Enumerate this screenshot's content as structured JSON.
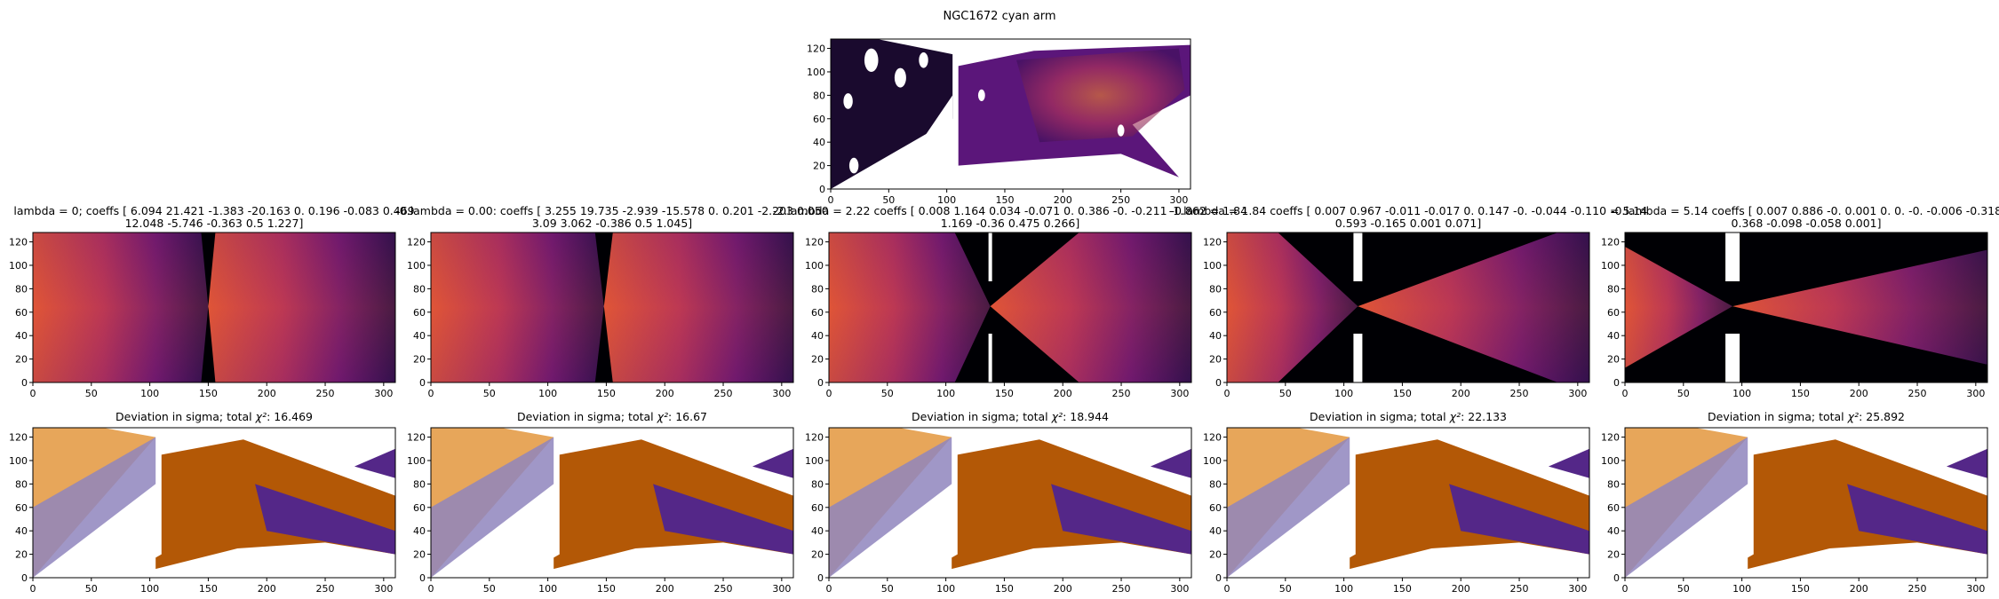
{
  "figure": {
    "suptitle": "NGC1672 cyan arm"
  },
  "chart_data": [
    {
      "id": "observed",
      "type": "heatmap",
      "title": "",
      "xlabel": "",
      "ylabel": "",
      "xlim": [
        0,
        310
      ],
      "ylim": [
        0,
        128
      ],
      "xticks": [
        0,
        50,
        100,
        150,
        200,
        250,
        300
      ],
      "yticks": [
        0,
        20,
        40,
        60,
        80,
        100,
        120
      ],
      "colormap": "inferno",
      "content": "observed intensity map with masked regions"
    },
    {
      "id": "model-0",
      "type": "heatmap",
      "title": "lambda = 0; coeffs [  6.094  21.421  -1.383 -20.163   0.      0.196  -0.083   0.469",
      "title_line2": "12.048  -5.746  -0.363   0.5     1.227]",
      "xlim": [
        0,
        310
      ],
      "ylim": [
        0,
        128
      ],
      "xticks": [
        0,
        50,
        100,
        150,
        200,
        250,
        300
      ],
      "yticks": [
        0,
        20,
        40,
        60,
        80,
        100,
        120
      ],
      "colormap": "inferno",
      "center_x": 150,
      "center_y": 65
    },
    {
      "id": "model-1",
      "type": "heatmap",
      "title": "-0.lambda = 0.00: coeffs [  3.255  19.735  -2.939 -15.578   0.      0.201  -2.203   0.050",
      "title_line2": "3.09    3.062  -0.386   0.5     1.045]",
      "xlim": [
        0,
        310
      ],
      "ylim": [
        0,
        128
      ],
      "xticks": [
        0,
        50,
        100,
        150,
        200,
        250,
        300
      ],
      "yticks": [
        0,
        20,
        40,
        60,
        80,
        100,
        120
      ],
      "colormap": "inferno",
      "center_x": 148,
      "center_y": 65
    },
    {
      "id": "model-2",
      "type": "heatmap",
      "title": "-2.lambda = 2.22 coeffs [ 0.008  1.164  0.034 -0.071  0.     0.386 -0.     -0.211 -0.862 = 1.84",
      "title_line2": "1.169 -0.36   0.475  0.266]",
      "xlim": [
        0,
        310
      ],
      "ylim": [
        0,
        128
      ],
      "xticks": [
        0,
        50,
        100,
        150,
        200,
        250,
        300
      ],
      "yticks": [
        0,
        20,
        40,
        60,
        80,
        100,
        120
      ],
      "colormap": "inferno",
      "center_x": 138,
      "center_y": 65
    },
    {
      "id": "model-3",
      "type": "heatmap",
      "title": "-1.lambda = 1.84 coeffs [ 0.007  0.967 -0.011 -0.017  0.     0.147 -0.     -0.044 -0.110 = 5.14",
      "title_line2": "0.593 -0.165  0.001  0.071]",
      "xlim": [
        0,
        310
      ],
      "ylim": [
        0,
        128
      ],
      "xticks": [
        0,
        50,
        100,
        150,
        200,
        250,
        300
      ],
      "yticks": [
        0,
        20,
        40,
        60,
        80,
        100,
        120
      ],
      "colormap": "inferno",
      "center_x": 112,
      "center_y": 65
    },
    {
      "id": "model-4",
      "type": "heatmap",
      "title": "-0.lambda = 5.14 coeffs [ 0.007  0.886 -0.     0.001  0.     0.    -0.     -0.006 -0.318",
      "title_line2": "0.368 -0.098 -0.058  0.001]",
      "xlim": [
        0,
        310
      ],
      "ylim": [
        0,
        128
      ],
      "xticks": [
        0,
        50,
        100,
        150,
        200,
        250,
        300
      ],
      "yticks": [
        0,
        20,
        40,
        60,
        80,
        100,
        120
      ],
      "colormap": "inferno",
      "center_x": 92,
      "center_y": 65
    },
    {
      "id": "dev-0",
      "type": "heatmap",
      "title_prefix": "Deviation in sigma; total ",
      "chi_label": "χ²",
      "title_suffix": ": 16.469",
      "total_chi2": 16.469,
      "xlim": [
        0,
        310
      ],
      "ylim": [
        0,
        128
      ],
      "xticks": [
        0,
        50,
        100,
        150,
        200,
        250,
        300
      ],
      "yticks": [
        0,
        20,
        40,
        60,
        80,
        100,
        120
      ],
      "colormap": "PuOr"
    },
    {
      "id": "dev-1",
      "type": "heatmap",
      "title_prefix": "Deviation in sigma; total ",
      "chi_label": "χ²",
      "title_suffix": ": 16.67",
      "total_chi2": 16.67,
      "xlim": [
        0,
        310
      ],
      "ylim": [
        0,
        128
      ],
      "xticks": [
        0,
        50,
        100,
        150,
        200,
        250,
        300
      ],
      "yticks": [
        0,
        20,
        40,
        60,
        80,
        100,
        120
      ],
      "colormap": "PuOr"
    },
    {
      "id": "dev-2",
      "type": "heatmap",
      "title_prefix": "Deviation in sigma; total ",
      "chi_label": "χ²",
      "title_suffix": ": 18.944",
      "total_chi2": 18.944,
      "xlim": [
        0,
        310
      ],
      "ylim": [
        0,
        128
      ],
      "xticks": [
        0,
        50,
        100,
        150,
        200,
        250,
        300
      ],
      "yticks": [
        0,
        20,
        40,
        60,
        80,
        100,
        120
      ],
      "colormap": "PuOr"
    },
    {
      "id": "dev-3",
      "type": "heatmap",
      "title_prefix": "Deviation in sigma; total ",
      "chi_label": "χ²",
      "title_suffix": ": 22.133",
      "total_chi2": 22.133,
      "xlim": [
        0,
        310
      ],
      "ylim": [
        0,
        128
      ],
      "xticks": [
        0,
        50,
        100,
        150,
        200,
        250,
        300
      ],
      "yticks": [
        0,
        20,
        40,
        60,
        80,
        100,
        120
      ],
      "colormap": "PuOr"
    },
    {
      "id": "dev-4",
      "type": "heatmap",
      "title_prefix": "Deviation in sigma; total ",
      "chi_label": "χ²",
      "title_suffix": ": 25.892",
      "total_chi2": 25.892,
      "xlim": [
        0,
        310
      ],
      "ylim": [
        0,
        128
      ],
      "xticks": [
        0,
        50,
        100,
        150,
        200,
        250,
        300
      ],
      "yticks": [
        0,
        20,
        40,
        60,
        80,
        100,
        120
      ],
      "colormap": "PuOr"
    }
  ]
}
